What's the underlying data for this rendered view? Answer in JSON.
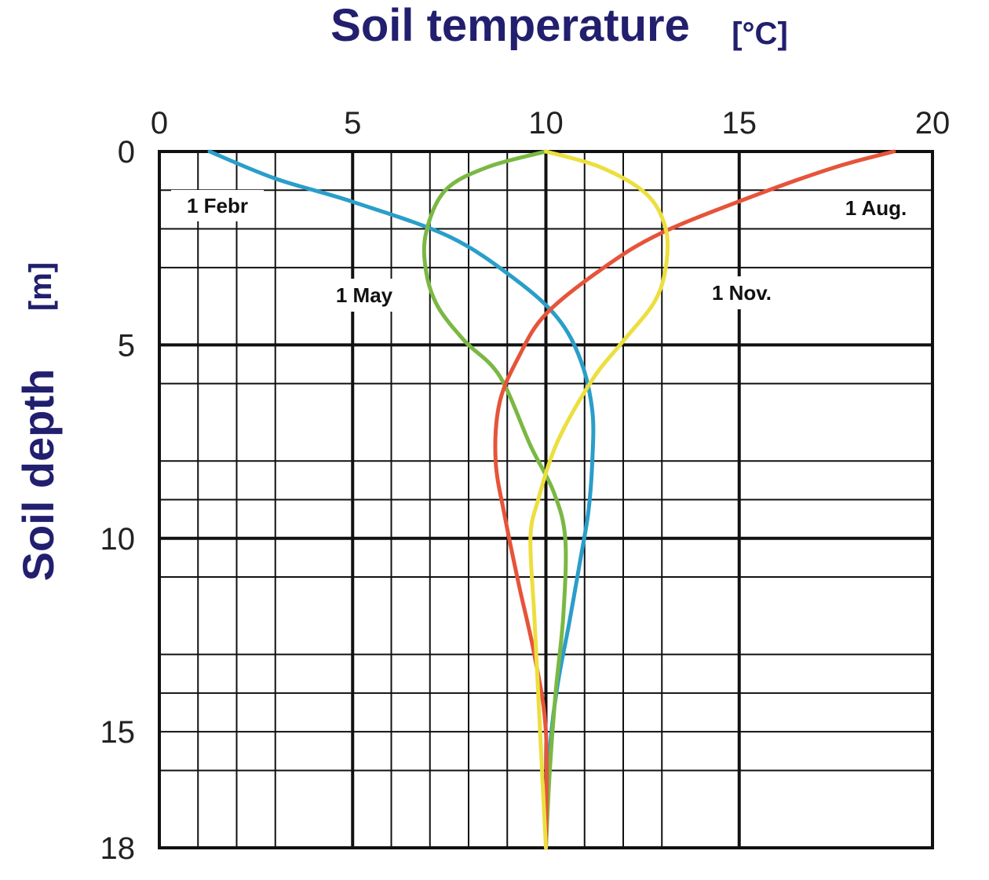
{
  "chart_data": {
    "type": "line",
    "title": "Soil temperature",
    "title_unit": "[°C]",
    "ylabel": "Soil depth",
    "ylabel_unit": "[m]",
    "xlim": [
      0,
      20
    ],
    "ylim": [
      0,
      18
    ],
    "y_inverted": true,
    "x_axis_position": "top",
    "x_ticks": [
      0,
      5,
      10,
      15,
      20
    ],
    "y_ticks": [
      0,
      5,
      10,
      15,
      18
    ],
    "x_tick_labels": [
      "0",
      "5",
      "10",
      "15",
      "20"
    ],
    "y_tick_labels": [
      "0",
      "5",
      "10",
      "15",
      "18"
    ],
    "x_gridlines": [
      0,
      1,
      2,
      3,
      5,
      6,
      7,
      8,
      9,
      10,
      11,
      12,
      13,
      15,
      20
    ],
    "y_gridlines": [
      0,
      1,
      2,
      3,
      5,
      6,
      8,
      9,
      10,
      11,
      13,
      14,
      15,
      16,
      18
    ],
    "major_gridlines_x": [
      0,
      5,
      10,
      15,
      20
    ],
    "major_gridlines_y": [
      0,
      5,
      10,
      18
    ],
    "grid": true,
    "series": [
      {
        "name": "1 Febr",
        "color": "#2a9ec9",
        "points": [
          [
            1.3,
            0
          ],
          [
            3,
            0.7
          ],
          [
            5,
            1.3
          ],
          [
            7.5,
            2.2
          ],
          [
            9.2,
            3.3
          ],
          [
            10.3,
            4.3
          ],
          [
            10.9,
            5.4
          ],
          [
            11.2,
            6.7
          ],
          [
            11.2,
            8
          ],
          [
            11.1,
            9.3
          ],
          [
            10.9,
            10.5
          ],
          [
            10.6,
            12.2
          ],
          [
            10.3,
            13.8
          ],
          [
            10.1,
            15.5
          ],
          [
            10,
            18
          ]
        ]
      },
      {
        "name": "1 May",
        "color": "#7ab843",
        "points": [
          [
            10,
            0
          ],
          [
            8.5,
            0.4
          ],
          [
            7.4,
            1
          ],
          [
            6.9,
            2.1
          ],
          [
            6.9,
            3.1
          ],
          [
            7.2,
            4
          ],
          [
            7.9,
            4.9
          ],
          [
            8.8,
            5.8
          ],
          [
            9.6,
            7.6
          ],
          [
            10.2,
            8.8
          ],
          [
            10.5,
            10
          ],
          [
            10.45,
            12
          ],
          [
            10.25,
            14
          ],
          [
            10.1,
            16
          ],
          [
            10,
            18
          ]
        ]
      },
      {
        "name": "1 Aug.",
        "color": "#e6543a",
        "points": [
          [
            19,
            0
          ],
          [
            17.5,
            0.4
          ],
          [
            15.5,
            1.1
          ],
          [
            13,
            2.1
          ],
          [
            11.5,
            3
          ],
          [
            10,
            4.2
          ],
          [
            9.3,
            5.3
          ],
          [
            8.8,
            6.5
          ],
          [
            8.7,
            8
          ],
          [
            8.95,
            9.5
          ],
          [
            9.3,
            11.2
          ],
          [
            9.7,
            13
          ],
          [
            10,
            15
          ],
          [
            10,
            18
          ]
        ]
      },
      {
        "name": "1 Nov.",
        "color": "#ecdf3e",
        "points": [
          [
            10,
            0
          ],
          [
            11.4,
            0.4
          ],
          [
            12.6,
            1.1
          ],
          [
            13.1,
            2
          ],
          [
            13.1,
            3
          ],
          [
            12.8,
            3.9
          ],
          [
            12,
            4.9
          ],
          [
            11.2,
            5.9
          ],
          [
            10.3,
            7.5
          ],
          [
            9.8,
            9
          ],
          [
            9.6,
            10
          ],
          [
            9.7,
            12
          ],
          [
            9.8,
            14
          ],
          [
            9.9,
            16
          ],
          [
            10,
            18
          ]
        ]
      }
    ],
    "annotations": [
      "1 Febr",
      "1 May",
      "1 Aug.",
      "1 Nov."
    ]
  }
}
